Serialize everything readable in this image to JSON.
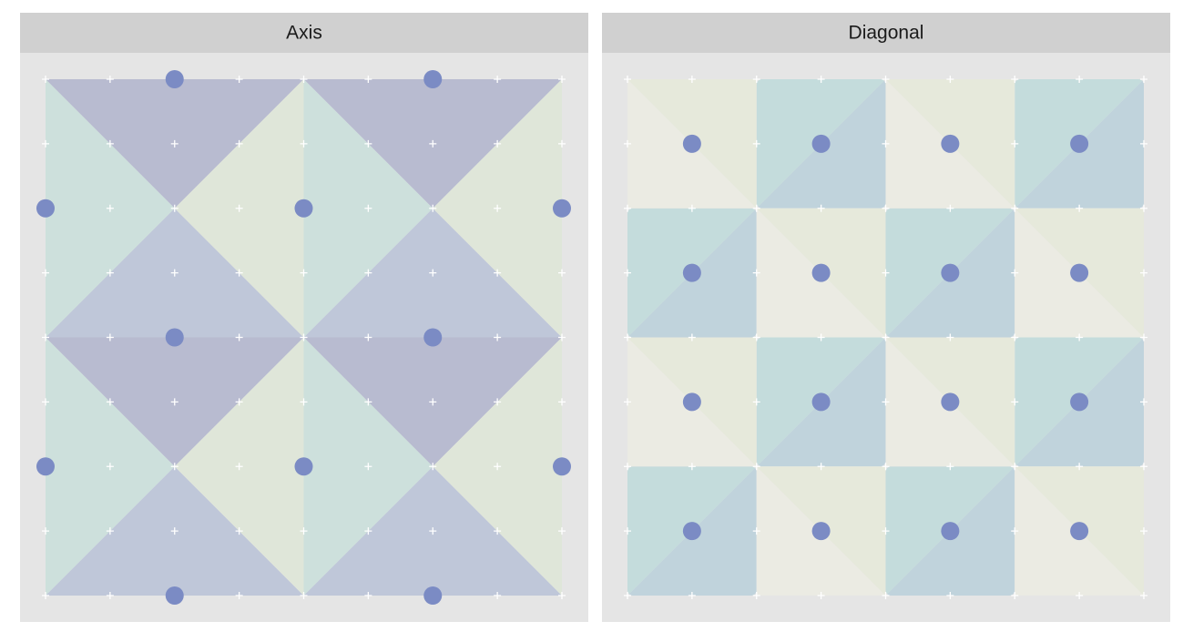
{
  "chart_data": [
    {
      "type": "scatter",
      "title": "Axis",
      "color": "#7b8bc4",
      "x": [
        2,
        6,
        0,
        4,
        8,
        2,
        6,
        0,
        4,
        8,
        2,
        6
      ],
      "y": [
        8,
        8,
        6,
        6,
        6,
        4,
        4,
        2,
        2,
        2,
        0,
        0
      ],
      "xlim": [
        0,
        8
      ],
      "ylim": [
        0,
        8
      ],
      "xticks": [
        0,
        1,
        2,
        3,
        4,
        5,
        6,
        7,
        8
      ],
      "yticks": [
        0,
        1,
        2,
        3,
        4,
        5,
        6,
        7,
        8
      ],
      "grid": true
    },
    {
      "type": "scatter",
      "title": "Diagonal",
      "color": "#7b8bc4",
      "x": [
        1,
        3,
        5,
        7,
        1,
        3,
        5,
        7,
        1,
        3,
        5,
        7,
        1,
        3,
        5,
        7
      ],
      "y": [
        7,
        7,
        7,
        7,
        5,
        5,
        5,
        5,
        3,
        3,
        3,
        3,
        1,
        1,
        1,
        1
      ],
      "xlim": [
        0,
        8
      ],
      "ylim": [
        0,
        8
      ],
      "xticks": [
        0,
        1,
        2,
        3,
        4,
        5,
        6,
        7,
        8
      ],
      "yticks": [
        0,
        1,
        2,
        3,
        4,
        5,
        6,
        7,
        8
      ],
      "grid": true
    }
  ]
}
